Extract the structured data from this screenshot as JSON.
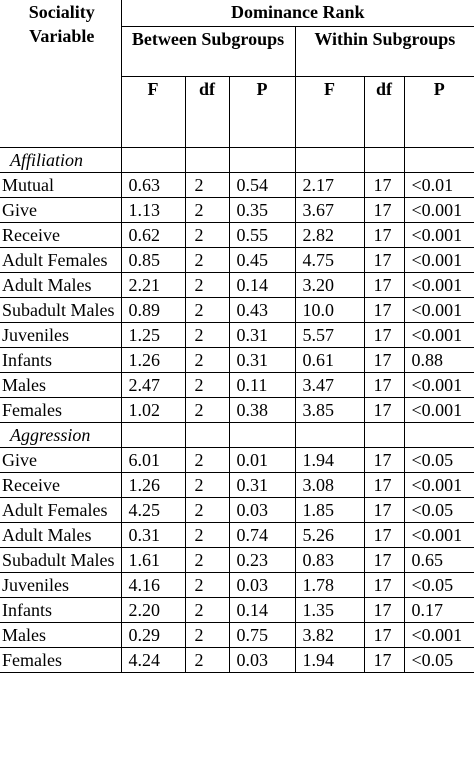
{
  "header": {
    "sociality_variable": "Sociality Variable",
    "dominance_rank": "Dominance Rank",
    "between_subgroups": "Between Subgroups",
    "within_subgroups": "Within Subgroups",
    "cols": [
      "F",
      "df",
      "P",
      "F",
      "df",
      "P"
    ]
  },
  "sections": [
    {
      "title": "Affiliation",
      "rows": [
        {
          "label": "Mutual",
          "f1": "0.63",
          "df1": "2",
          "p1": "0.54",
          "f2": "2.17",
          "df2": "17",
          "p2": "<0.01"
        },
        {
          "label": "Give",
          "f1": "1.13",
          "df1": "2",
          "p1": "0.35",
          "f2": "3.67",
          "df2": "17",
          "p2": "<0.001"
        },
        {
          "label": "Receive",
          "f1": "0.62",
          "df1": "2",
          "p1": "0.55",
          "f2": "2.82",
          "df2": "17",
          "p2": "<0.001"
        },
        {
          "label": "Adult Females",
          "f1": "0.85",
          "df1": "2",
          "p1": "0.45",
          "f2": "4.75",
          "df2": "17",
          "p2": "<0.001"
        },
        {
          "label": "Adult Males",
          "f1": "2.21",
          "df1": "2",
          "p1": "0.14",
          "f2": "3.20",
          "df2": "17",
          "p2": "<0.001"
        },
        {
          "label": "Subadult Males",
          "f1": "0.89",
          "df1": "2",
          "p1": "0.43",
          "f2": "10.0",
          "df2": "17",
          "p2": "<0.001"
        },
        {
          "label": "Juveniles",
          "f1": "1.25",
          "df1": "2",
          "p1": "0.31",
          "f2": "5.57",
          "df2": "17",
          "p2": "<0.001"
        },
        {
          "label": "Infants",
          "f1": "1.26",
          "df1": "2",
          "p1": "0.31",
          "f2": "0.61",
          "df2": "17",
          "p2": "0.88"
        },
        {
          "label": "Males",
          "f1": "2.47",
          "df1": "2",
          "p1": "0.11",
          "f2": "3.47",
          "df2": "17",
          "p2": "<0.001"
        },
        {
          "label": "Females",
          "f1": "1.02",
          "df1": "2",
          "p1": "0.38",
          "f2": "3.85",
          "df2": "17",
          "p2": "<0.001"
        }
      ]
    },
    {
      "title": "Aggression",
      "rows": [
        {
          "label": "Give",
          "f1": "6.01",
          "df1": "2",
          "p1": "0.01",
          "f2": "1.94",
          "df2": "17",
          "p2": "<0.05"
        },
        {
          "label": "Receive",
          "f1": "1.26",
          "df1": "2",
          "p1": "0.31",
          "f2": "3.08",
          "df2": "17",
          "p2": "<0.001"
        },
        {
          "label": "Adult Females",
          "f1": "4.25",
          "df1": "2",
          "p1": "0.03",
          "f2": "1.85",
          "df2": "17",
          "p2": "<0.05"
        },
        {
          "label": "Adult Males",
          "f1": "0.31",
          "df1": "2",
          "p1": "0.74",
          "f2": "5.26",
          "df2": "17",
          "p2": "<0.001"
        },
        {
          "label": "Subadult Males",
          "f1": "1.61",
          "df1": "2",
          "p1": "0.23",
          "f2": "0.83",
          "df2": "17",
          "p2": "0.65"
        },
        {
          "label": "Juveniles",
          "f1": "4.16",
          "df1": "2",
          "p1": "0.03",
          "f2": "1.78",
          "df2": "17",
          "p2": "<0.05"
        },
        {
          "label": "Infants",
          "f1": "2.20",
          "df1": "2",
          "p1": "0.14",
          "f2": "1.35",
          "df2": "17",
          "p2": "0.17"
        },
        {
          "label": "Males",
          "f1": "0.29",
          "df1": "2",
          "p1": "0.75",
          "f2": "3.82",
          "df2": "17",
          "p2": "<0.001"
        },
        {
          "label": "Females",
          "f1": "4.24",
          "df1": "2",
          "p1": "0.03",
          "f2": "1.94",
          "df2": "17",
          "p2": "<0.05"
        }
      ]
    }
  ]
}
